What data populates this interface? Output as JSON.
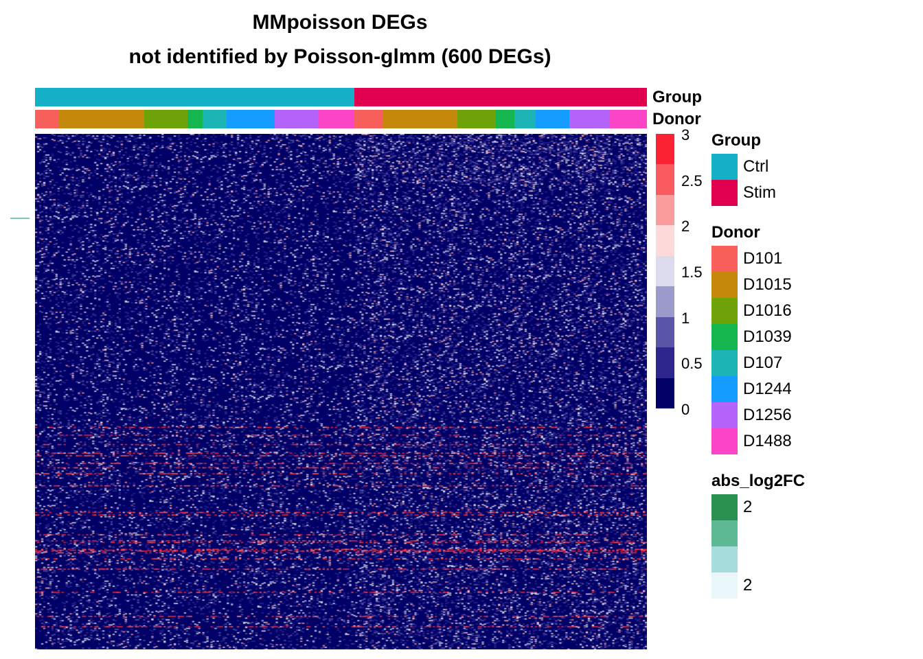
{
  "chart_data": {
    "type": "heatmap",
    "title": "MMpoisson DEGs",
    "subtitle": "not identified by Poisson-glmm (600 DEGs)",
    "annotations": {
      "group": {
        "label": "Group",
        "segments": [
          {
            "name": "Ctrl",
            "fraction": 0.522,
            "color": "#14b0c8"
          },
          {
            "name": "Stim",
            "fraction": 0.478,
            "color": "#e0004d"
          }
        ]
      },
      "donor": {
        "label": "Donor",
        "segments": [
          {
            "name": "D101",
            "fraction": 0.038,
            "color": "#f8605c"
          },
          {
            "name": "D1015",
            "fraction": 0.14,
            "color": "#c4880a"
          },
          {
            "name": "D1016",
            "fraction": 0.071,
            "color": "#6ea30a"
          },
          {
            "name": "D1039",
            "fraction": 0.025,
            "color": "#16b64f"
          },
          {
            "name": "D107",
            "fraction": 0.039,
            "color": "#1bb5b5"
          },
          {
            "name": "D1244",
            "fraction": 0.079,
            "color": "#149cff"
          },
          {
            "name": "D1256",
            "fraction": 0.072,
            "color": "#b463fb"
          },
          {
            "name": "D1488",
            "fraction": 0.058,
            "color": "#fb45c6"
          },
          {
            "name": "D101",
            "fraction": 0.047,
            "color": "#f8605c"
          },
          {
            "name": "D1015",
            "fraction": 0.121,
            "color": "#c4880a"
          },
          {
            "name": "D1016",
            "fraction": 0.063,
            "color": "#6ea30a"
          },
          {
            "name": "D1039",
            "fraction": 0.031,
            "color": "#16b64f"
          },
          {
            "name": "D107",
            "fraction": 0.034,
            "color": "#1bb5b5"
          },
          {
            "name": "D1244",
            "fraction": 0.055,
            "color": "#149cff"
          },
          {
            "name": "D1256",
            "fraction": 0.066,
            "color": "#b463fb"
          },
          {
            "name": "D1488",
            "fraction": 0.061,
            "color": "#fb45c6"
          }
        ]
      }
    },
    "color_scale": {
      "min": 0,
      "max": 3,
      "ticks": [
        "3",
        "2.5",
        "2",
        "1.5",
        "1",
        "0.5",
        "0"
      ],
      "colors": [
        "#fb2233",
        "#fa5b61",
        "#fb9c9d",
        "#fddad9",
        "#dcdbee",
        "#9c99cb",
        "#5b57a8",
        "#2d278d",
        "#000066"
      ]
    },
    "legends": [
      {
        "title": "Group",
        "items": [
          {
            "label": "Ctrl",
            "color": "#14b0c8"
          },
          {
            "label": "Stim",
            "color": "#e0004d"
          }
        ]
      },
      {
        "title": "Donor",
        "items": [
          {
            "label": "D101",
            "color": "#f8605c"
          },
          {
            "label": "D1015",
            "color": "#c4880a"
          },
          {
            "label": "D1016",
            "color": "#6ea30a"
          },
          {
            "label": "D1039",
            "color": "#16b64f"
          },
          {
            "label": "D107",
            "color": "#1bb5b5"
          },
          {
            "label": "D1244",
            "color": "#149cff"
          },
          {
            "label": "D1256",
            "color": "#b463fb"
          },
          {
            "label": "D1488",
            "color": "#fb45c6"
          }
        ]
      },
      {
        "title": "abs_log2FC",
        "items": [
          {
            "label": "2",
            "color": "#2a9150"
          },
          {
            "label": "",
            "color": "#5cb994"
          },
          {
            "label": "",
            "color": "#a6dcdc"
          },
          {
            "label": "2",
            "color": "#e9f7fb"
          }
        ]
      }
    ]
  }
}
